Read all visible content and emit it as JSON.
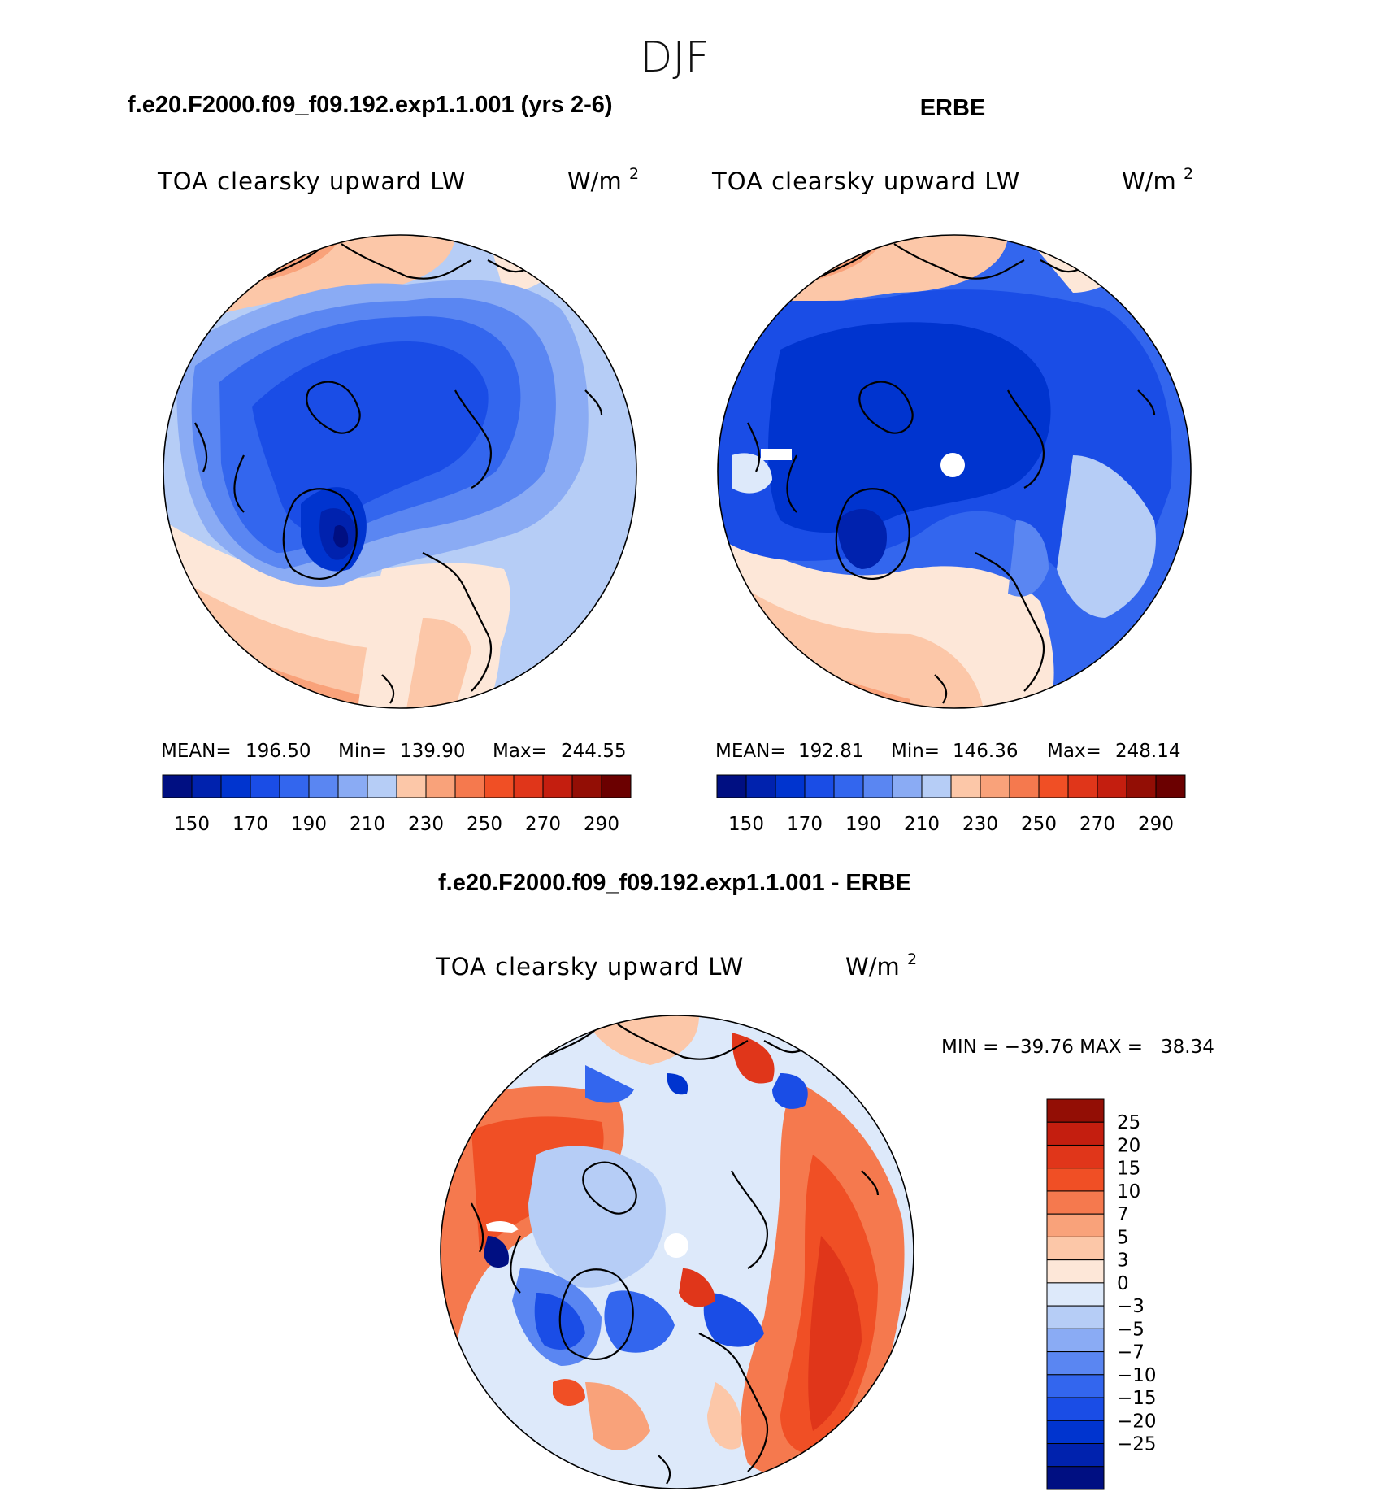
{
  "page": {
    "season": "DJF",
    "case1_title": "f.e20.F2000.f09_f09.192.exp1.1.001 (yrs 2-6)",
    "case2_title": "ERBE",
    "diff_title": "f.e20.F2000.f09_f09.192.exp1.1.001 - ERBE"
  },
  "colors": {
    "blues_dark_to_light": [
      "#000f82",
      "#0022ae",
      "#0034cf",
      "#1a4de6",
      "#3366ee",
      "#5a86f2",
      "#8aabf4",
      "#b6cdf6",
      "#dde9fa"
    ],
    "reds_light_to_dark": [
      "#fde7d8",
      "#fcc7a8",
      "#f9a27a",
      "#f5794e",
      "#f04f25",
      "#e0361a",
      "#c41e0f",
      "#930e05",
      "#6b0000"
    ],
    "diff_scale_bottom_to_top": [
      "#000f82",
      "#0022ae",
      "#0034cf",
      "#1a4de6",
      "#3366ee",
      "#5a86f2",
      "#8aabf4",
      "#b6cdf6",
      "#dde9fa",
      "#fde7d8",
      "#fcc7a8",
      "#f9a27a",
      "#f5794e",
      "#f04f25",
      "#e0361a",
      "#c41e0f",
      "#930e05"
    ]
  },
  "chart_data": [
    {
      "type": "heatmap",
      "projection": "polar stereographic (north)",
      "title": "f.e20.F2000.f09_f09.192.exp1.1.001 (yrs 2-6)",
      "variable": "TOA clearsky upward LW",
      "units_base": "W/m",
      "units_exp": "2",
      "stats": {
        "mean_label": "MEAN=",
        "mean": "196.50",
        "min_label": "Min=",
        "min": "139.90",
        "max_label": "Max=",
        "max": "244.55"
      },
      "colorbar_labels": [
        "150",
        "170",
        "190",
        "210",
        "230",
        "250",
        "270",
        "290"
      ],
      "colorbar_bins": 16
    },
    {
      "type": "heatmap",
      "projection": "polar stereographic (north)",
      "title": "ERBE",
      "variable": "TOA clearsky upward LW",
      "units_base": "W/m",
      "units_exp": "2",
      "stats": {
        "mean_label": "MEAN=",
        "mean": "192.81",
        "min_label": "Min=",
        "min": "146.36",
        "max_label": "Max=",
        "max": "248.14"
      },
      "colorbar_labels": [
        "150",
        "170",
        "190",
        "210",
        "230",
        "250",
        "270",
        "290"
      ],
      "colorbar_bins": 16
    },
    {
      "type": "heatmap",
      "projection": "polar stereographic (north)",
      "title": "f.e20.F2000.f09_f09.192.exp1.1.001 - ERBE",
      "variable": "TOA clearsky upward LW",
      "units_base": "W/m",
      "units_exp": "2",
      "minmax_text": "MIN = −39.76 MAX =   38.34",
      "colorbar_labels_top_to_bottom": [
        "25",
        "20",
        "15",
        "10",
        "7",
        "5",
        "3",
        "0",
        "−3",
        "−5",
        "−7",
        "−10",
        "−15",
        "−20",
        "−25"
      ]
    }
  ]
}
